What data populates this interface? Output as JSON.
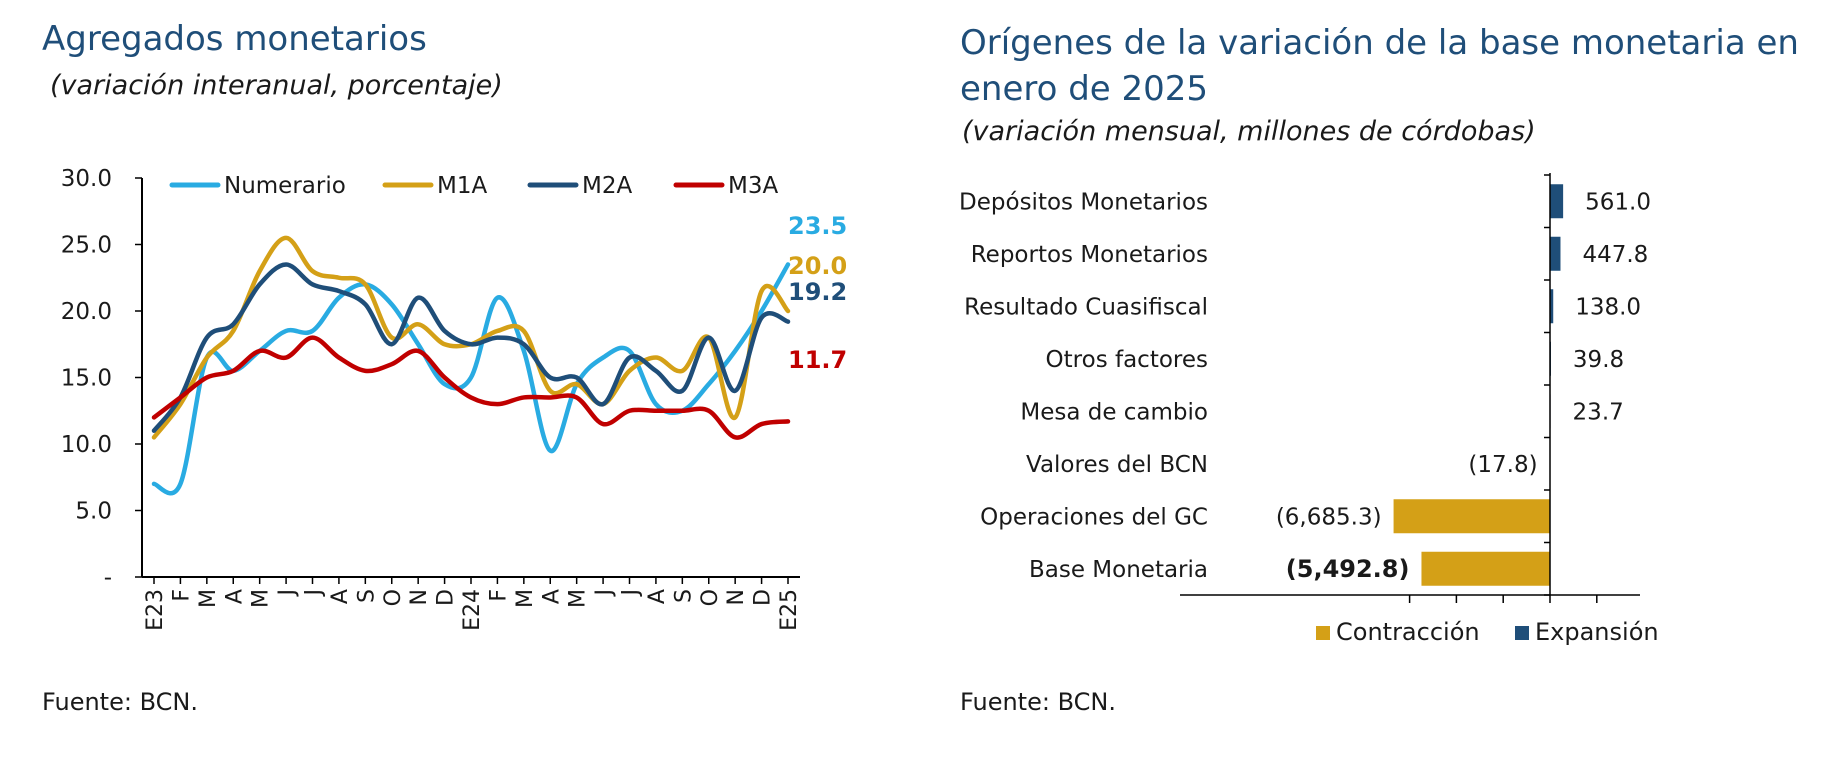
{
  "left": {
    "title": "Agregados monetarios",
    "subtitle": "(variación interanual, porcentaje)",
    "source": "Fuente: BCN."
  },
  "right": {
    "title_line1": "Orígenes de la variación de la base monetaria en",
    "title_line2": "enero de 2025",
    "subtitle": "(variación mensual, millones de córdobas)",
    "source": "Fuente: BCN."
  },
  "colors": {
    "numerario": "#29abe2",
    "m1a": "#d4a017",
    "m2a": "#1f4e79",
    "m3a": "#c00000",
    "contraccion": "#d4a017",
    "expansion": "#1f4e79"
  },
  "chart_data": [
    {
      "type": "line",
      "ylim": [
        0,
        30
      ],
      "yticks": [
        "-",
        "5.0",
        "10.0",
        "15.0",
        "20.0",
        "25.0",
        "30.0"
      ],
      "categories": [
        "E23",
        "F",
        "M",
        "A",
        "M",
        "J",
        "J",
        "A",
        "S",
        "O",
        "N",
        "D",
        "E24",
        "F",
        "M",
        "A",
        "M",
        "J",
        "J",
        "A",
        "S",
        "O",
        "N",
        "D",
        "E25"
      ],
      "legend_position": "top",
      "series": [
        {
          "name": "Numerario",
          "color": "#29abe2",
          "values": [
            7.0,
            7.0,
            16.5,
            15.5,
            17.0,
            18.5,
            18.5,
            21.0,
            22.0,
            20.5,
            17.5,
            14.5,
            15.0,
            21.0,
            17.0,
            9.5,
            14.5,
            16.5,
            17.0,
            13.0,
            12.5,
            14.5,
            17.0,
            20.0,
            23.5
          ],
          "end_label": "23.5"
        },
        {
          "name": "M1A",
          "color": "#d4a017",
          "values": [
            10.5,
            13.0,
            16.5,
            18.5,
            23.0,
            25.5,
            23.0,
            22.5,
            22.0,
            18.0,
            19.0,
            17.5,
            17.5,
            18.5,
            18.5,
            14.0,
            14.5,
            13.0,
            15.5,
            16.5,
            15.5,
            18.0,
            12.0,
            21.5,
            20.0
          ],
          "end_label": "20.0"
        },
        {
          "name": "M2A",
          "color": "#1f4e79",
          "values": [
            11.0,
            13.5,
            18.0,
            19.0,
            22.0,
            23.5,
            22.0,
            21.5,
            20.5,
            17.5,
            21.0,
            18.5,
            17.5,
            18.0,
            17.5,
            15.0,
            15.0,
            13.0,
            16.5,
            15.5,
            14.0,
            18.0,
            14.0,
            19.5,
            19.2
          ],
          "end_label": "19.2"
        },
        {
          "name": "M3A",
          "color": "#c00000",
          "values": [
            12.0,
            13.5,
            15.0,
            15.5,
            17.0,
            16.5,
            18.0,
            16.5,
            15.5,
            16.0,
            17.0,
            15.0,
            13.5,
            13.0,
            13.5,
            13.5,
            13.5,
            11.5,
            12.5,
            12.5,
            12.5,
            12.5,
            10.5,
            11.5,
            11.7
          ],
          "end_label": "11.7"
        }
      ]
    },
    {
      "type": "bar",
      "orientation": "horizontal",
      "categories": [
        "Depósitos Monetarios",
        "Reportos Monetarios",
        "Resultado Cuasifiscal",
        "Otros factores",
        "Mesa de cambio",
        "Valores del BCN",
        "Operaciones del GC",
        "Base Monetaria"
      ],
      "values": [
        561.0,
        447.8,
        138.0,
        39.8,
        23.7,
        -17.8,
        -6685.3,
        -5492.8
      ],
      "value_labels": [
        "561.0",
        "447.8",
        "138.0",
        "39.8",
        "23.7",
        "(17.8)",
        "(6,685.3)",
        "(5,492.8)"
      ],
      "legend": [
        "Contracción",
        "Expansión"
      ],
      "legend_position": "bottom"
    }
  ]
}
